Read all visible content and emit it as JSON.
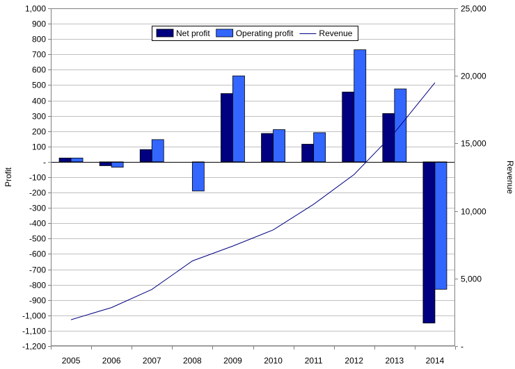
{
  "chart_data": {
    "type": "bar",
    "categories": [
      "2005",
      "2006",
      "2007",
      "2008",
      "2009",
      "2010",
      "2011",
      "2012",
      "2013",
      "2014"
    ],
    "series": [
      {
        "name": "Net profit",
        "type": "bar",
        "axis": "left",
        "color": "#000080",
        "values": [
          25,
          -25,
          80,
          0,
          445,
          185,
          115,
          455,
          315,
          -1050
        ]
      },
      {
        "name": "Operating profit",
        "type": "bar",
        "axis": "left",
        "color": "#3366FF",
        "values": [
          25,
          -35,
          145,
          -190,
          560,
          210,
          190,
          730,
          475,
          -830
        ]
      },
      {
        "name": "Revenue",
        "type": "line",
        "axis": "right",
        "color": "#000080",
        "values": [
          1950,
          2850,
          4200,
          6300,
          7400,
          8600,
          10500,
          12700,
          15800,
          19500
        ]
      }
    ],
    "y_left": {
      "label": "Profit",
      "min": -1200,
      "max": 1000,
      "step": 100,
      "ticks": [
        "1,000",
        "900",
        "800",
        "700",
        "600",
        "500",
        "400",
        "300",
        "200",
        "100",
        "-",
        "-100",
        "-200",
        "-300",
        "-400",
        "-500",
        "-600",
        "-700",
        "-800",
        "-900",
        "-1,000",
        "-1,100",
        "-1,200"
      ]
    },
    "y_right": {
      "label": "Revenue",
      "min": 0,
      "max": 25000,
      "step": 5000,
      "ticks": [
        "25,000",
        "20,000",
        "15,000",
        "10,000",
        "5,000",
        "-"
      ]
    },
    "grid": true,
    "legend": "top-center"
  }
}
